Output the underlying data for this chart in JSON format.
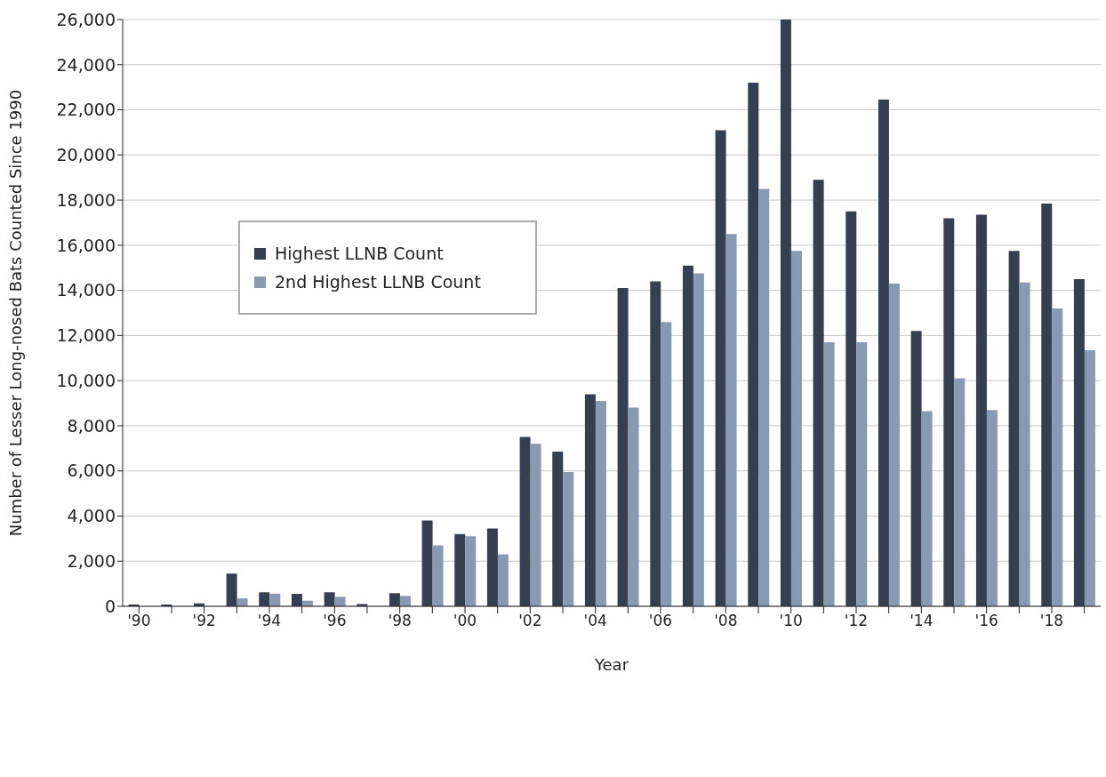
{
  "chart_data": {
    "type": "bar",
    "xlabel": "Year",
    "ylabel": "Number of Lesser Long-nosed Bats Counted Since 1990",
    "categories": [
      "'90",
      null,
      "'92",
      null,
      "'94",
      null,
      "'96",
      null,
      "'98",
      null,
      "'00",
      null,
      "'02",
      null,
      "'04",
      null,
      "'06",
      null,
      "'08",
      null,
      "'10",
      null,
      "'12",
      null,
      "'14",
      null,
      "'16",
      null,
      "'18",
      null
    ],
    "series": [
      {
        "name": "Highest LLNB Count",
        "color": "#353f52",
        "values": [
          80,
          80,
          130,
          1450,
          620,
          550,
          620,
          100,
          580,
          3800,
          3200,
          3450,
          7500,
          6850,
          9400,
          14100,
          14400,
          15100,
          21100,
          23200,
          26000,
          18900,
          17500,
          22450,
          12200,
          17200,
          17350,
          15750,
          17850,
          14500
        ]
      },
      {
        "name": "2nd Highest LLNB Count",
        "color": "#8899b2",
        "values": [
          null,
          null,
          null,
          350,
          560,
          250,
          420,
          null,
          460,
          2700,
          3100,
          2300,
          7200,
          5950,
          9100,
          8800,
          12600,
          14750,
          16500,
          18500,
          15750,
          11700,
          11700,
          14300,
          8650,
          10100,
          8700,
          14350,
          13200,
          11350
        ]
      }
    ],
    "ylim": [
      0,
      26000
    ],
    "yticks": [
      0,
      {
        "value": 2000,
        "label": "2,000"
      },
      {
        "value": 4000,
        "label": "4,000"
      },
      {
        "value": 6000,
        "label": "6,000"
      },
      {
        "value": 8000,
        "label": "8,000"
      },
      {
        "value": 10000,
        "label": "10,000"
      },
      {
        "value": 12000,
        "label": "12,000"
      },
      {
        "value": 14000,
        "label": "14,000"
      },
      {
        "value": 16000,
        "label": "16,000"
      },
      {
        "value": 18000,
        "label": "18,000"
      },
      {
        "value": 20000,
        "label": "20,000"
      },
      {
        "value": 22000,
        "label": "22,000"
      },
      {
        "value": 24000,
        "label": "24,000"
      },
      {
        "value": 26000,
        "label": "26,000"
      }
    ],
    "grid": "y",
    "legend": "top left"
  }
}
